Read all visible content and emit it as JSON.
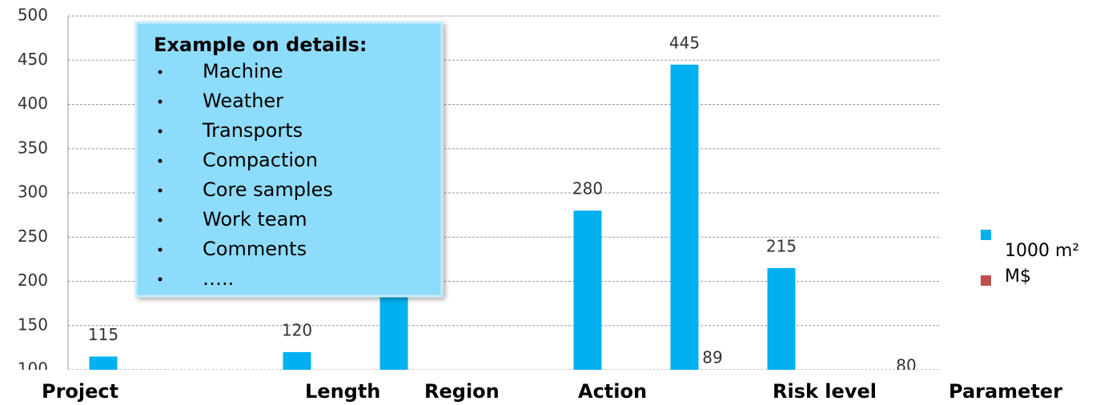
{
  "chart_data": {
    "type": "bar",
    "categories": [
      null,
      null,
      null,
      null,
      null,
      null,
      null,
      null,
      null
    ],
    "series": [
      {
        "name": "1000 m²",
        "color": "#00b0f0",
        "values": [
          115,
          null,
          120,
          240,
          null,
          280,
          445,
          215,
          null
        ]
      },
      {
        "name": "M$",
        "color": "#c0504d",
        "values": [
          null,
          null,
          null,
          null,
          null,
          null,
          89,
          null,
          80
        ]
      }
    ],
    "ylim": [
      100,
      500
    ],
    "yticks": [
      100,
      150,
      200,
      250,
      300,
      350,
      400,
      450,
      500
    ],
    "grid": true,
    "legend": "right",
    "bottom_labels": [
      "Project",
      "Length",
      "Region",
      "Action",
      "Risk level",
      "Parameter"
    ],
    "callout": {
      "title": "Example on details:",
      "items": [
        "Machine",
        "Weather",
        "Transports",
        "Compaction",
        "Core samples",
        "Work team",
        "Comments",
        "….."
      ]
    }
  }
}
